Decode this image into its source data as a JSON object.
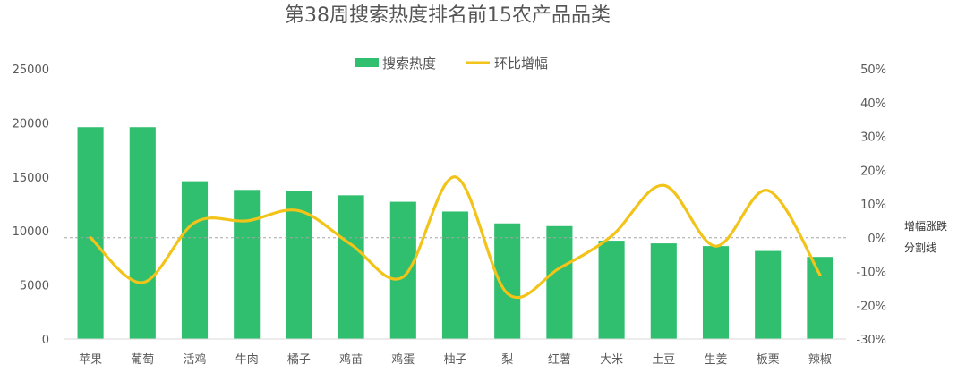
{
  "chart_data": {
    "type": "bar",
    "title": "第38周搜索热度排名前15农产品品类",
    "categories": [
      "苹果",
      "葡萄",
      "活鸡",
      "牛肉",
      "橘子",
      "鸡苗",
      "鸡蛋",
      "柚子",
      "梨",
      "红薯",
      "大米",
      "土豆",
      "生姜",
      "板栗",
      "辣椒"
    ],
    "series": [
      {
        "name": "搜索热度",
        "type": "bar",
        "axis": "left",
        "color": "#2fbf6e",
        "values": [
          19600,
          19600,
          14600,
          13800,
          13700,
          13300,
          12700,
          11800,
          10700,
          10450,
          9100,
          8850,
          8600,
          8150,
          7600
        ]
      },
      {
        "name": "环比增幅",
        "type": "line",
        "axis": "right",
        "color": "#f2c318",
        "smooth": true,
        "values": [
          0,
          -13.3,
          4.5,
          5,
          8,
          -2,
          -11.6,
          18,
          -16.5,
          -9,
          0.5,
          15.5,
          -2.5,
          14,
          -11
        ]
      }
    ],
    "yleft": {
      "min": 0,
      "max": 25000,
      "ticks": [
        0,
        5000,
        10000,
        15000,
        20000,
        25000
      ]
    },
    "yright": {
      "min": -30,
      "max": 50,
      "ticks": [
        "-30%",
        "-20%",
        "-10%",
        "0%",
        "10%",
        "20%",
        "30%",
        "40%",
        "50%"
      ]
    },
    "reference_line": {
      "value": 0,
      "axis": "right",
      "style": "dashed",
      "label_lines": [
        "增幅涨跌",
        "分割线"
      ]
    },
    "legend_position": "top-center",
    "grid": false
  }
}
